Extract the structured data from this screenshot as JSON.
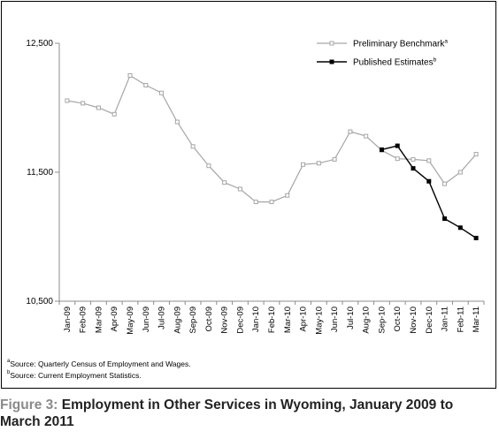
{
  "chart_data": {
    "type": "line",
    "title": "",
    "xlabel": "",
    "ylabel": "",
    "ylim": [
      10500,
      12500
    ],
    "yticks": [
      10500,
      11500,
      12500
    ],
    "ytick_labels": [
      "10,500",
      "11,500",
      "12,500"
    ],
    "grid": false,
    "legend_position": "top-right",
    "categories": [
      "Jan-09",
      "Feb-09",
      "Mar-09",
      "Apr-09",
      "May-09",
      "Jun-09",
      "Jul-09",
      "Aug-09",
      "Sep-09",
      "Oct-09",
      "Nov-09",
      "Dec-09",
      "Jan-10",
      "Feb-10",
      "Mar-10",
      "Apr-10",
      "May-10",
      "Jun-10",
      "Jul-10",
      "Aug-10",
      "Sep-10",
      "Oct-10",
      "Nov-10",
      "Dec-10",
      "Jan-11",
      "Feb-11",
      "Mar-11"
    ],
    "series": [
      {
        "name": "Preliminary Benchmark",
        "marker": "a",
        "color": "#a6a6a6",
        "marker_style": "open-square",
        "values": [
          12055,
          12035,
          12000,
          11950,
          12250,
          12175,
          12115,
          11890,
          11700,
          11550,
          11420,
          11370,
          11270,
          11270,
          11320,
          11560,
          11570,
          11600,
          11815,
          11780,
          11670,
          11605,
          11600,
          11590,
          11410,
          11500,
          11640
        ]
      },
      {
        "name": "Published Estimates",
        "marker": "b",
        "color": "#000000",
        "marker_style": "filled-square",
        "values": [
          null,
          null,
          null,
          null,
          null,
          null,
          null,
          null,
          null,
          null,
          null,
          null,
          null,
          null,
          null,
          null,
          null,
          null,
          null,
          null,
          11675,
          11705,
          11530,
          11430,
          11140,
          11070,
          10990
        ]
      }
    ]
  },
  "footnotes": [
    {
      "marker": "a",
      "text": "Source: Quarterly Census of Employment and Wages."
    },
    {
      "marker": "b",
      "text": "Source: Current Employment Statistics."
    }
  ],
  "caption": {
    "figure_label": "Figure 3:",
    "text": " Employment in Other Services in Wyoming, January 2009 to March 2011"
  }
}
